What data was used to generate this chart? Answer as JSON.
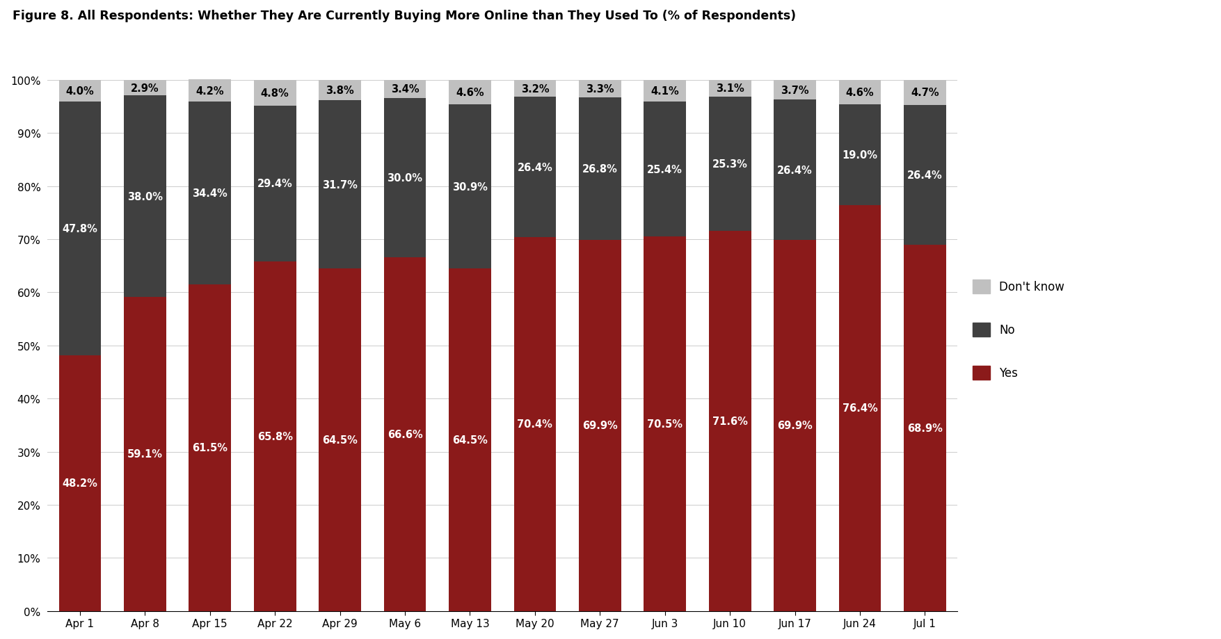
{
  "categories": [
    "Apr 1",
    "Apr 8",
    "Apr 15",
    "Apr 22",
    "Apr 29",
    "May 6",
    "May 13",
    "May 20",
    "May 27",
    "Jun 3",
    "Jun 10",
    "Jun 17",
    "Jun 24",
    "Jul 1"
  ],
  "yes": [
    48.2,
    59.1,
    61.5,
    65.8,
    64.5,
    66.6,
    64.5,
    70.4,
    69.9,
    70.5,
    71.6,
    69.9,
    76.4,
    68.9
  ],
  "no": [
    47.8,
    38.0,
    34.4,
    29.4,
    31.7,
    30.0,
    30.9,
    26.4,
    26.8,
    25.4,
    25.3,
    26.4,
    19.0,
    26.4
  ],
  "dk": [
    4.0,
    2.9,
    4.2,
    4.8,
    3.8,
    3.4,
    4.6,
    3.2,
    3.3,
    4.1,
    3.1,
    3.7,
    4.6,
    4.7
  ],
  "yes_color": "#8B1A1A",
  "no_color": "#404040",
  "dk_color": "#C0C0C0",
  "title": "Figure 8. All Respondents: Whether They Are Currently Buying More Online than They Used To (% of Respondents)",
  "title_fontsize": 12.5,
  "background_color": "#FFFFFF",
  "bar_width": 0.65,
  "ylim_max": 106,
  "yticks": [
    0,
    10,
    20,
    30,
    40,
    50,
    60,
    70,
    80,
    90,
    100
  ],
  "ytick_labels": [
    "0%",
    "10%",
    "20%",
    "30%",
    "40%",
    "50%",
    "60%",
    "70%",
    "80%",
    "90%",
    "100%"
  ],
  "label_fontsize": 10.5,
  "tick_fontsize": 11
}
